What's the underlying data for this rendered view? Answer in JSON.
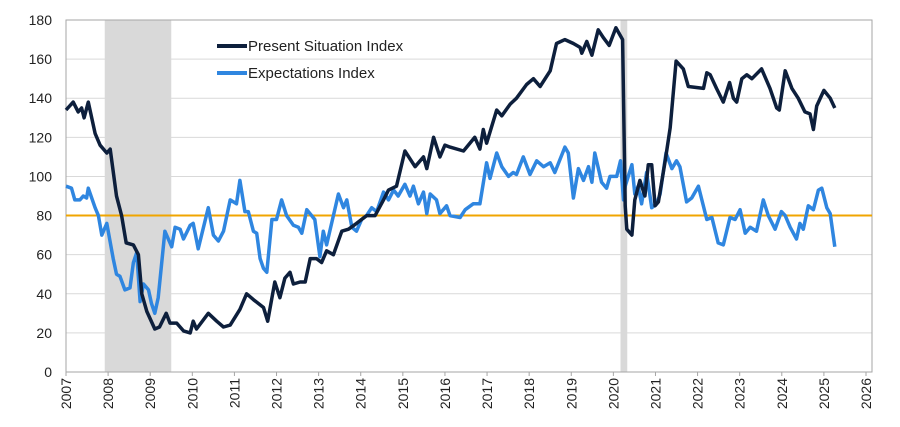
{
  "chart_data": {
    "type": "line",
    "title": "",
    "xlabel": "",
    "ylabel": "",
    "xlim": [
      2007,
      2026
    ],
    "ylim": [
      0,
      180
    ],
    "x_ticks": [
      "2007",
      "2008",
      "2009",
      "2010",
      "2011",
      "2012",
      "2013",
      "2014",
      "2015",
      "2016",
      "2017",
      "2018",
      "2019",
      "2020",
      "2021",
      "2022",
      "2023",
      "2024",
      "2025",
      "2026"
    ],
    "y_ticks": [
      "0",
      "20",
      "40",
      "60",
      "80",
      "100",
      "120",
      "140",
      "160",
      "180"
    ],
    "grid": "horizontal",
    "legend_position": "top-center",
    "reference_line": {
      "value": 80,
      "color": "#f0a500"
    },
    "recessions": [
      [
        2007.92,
        2009.5
      ],
      [
        2020.17,
        2020.33
      ]
    ],
    "recession_color": "#d9d9d9",
    "series": [
      {
        "name": "Present Situation Index",
        "color": "#0d1f3c",
        "points": [
          [
            2007.0,
            134
          ],
          [
            2007.17,
            138
          ],
          [
            2007.29,
            133
          ],
          [
            2007.37,
            135
          ],
          [
            2007.43,
            130
          ],
          [
            2007.53,
            138
          ],
          [
            2007.69,
            122
          ],
          [
            2007.81,
            116
          ],
          [
            2007.97,
            112
          ],
          [
            2008.05,
            114
          ],
          [
            2008.2,
            90
          ],
          [
            2008.32,
            80
          ],
          [
            2008.43,
            66
          ],
          [
            2008.6,
            65
          ],
          [
            2008.72,
            60
          ],
          [
            2008.8,
            40
          ],
          [
            2008.92,
            31
          ],
          [
            2009.11,
            22
          ],
          [
            2009.22,
            23
          ],
          [
            2009.38,
            30
          ],
          [
            2009.47,
            25
          ],
          [
            2009.63,
            25
          ],
          [
            2009.79,
            21
          ],
          [
            2009.95,
            20
          ],
          [
            2010.02,
            26
          ],
          [
            2010.1,
            22
          ],
          [
            2010.38,
            30
          ],
          [
            2010.58,
            26
          ],
          [
            2010.74,
            23
          ],
          [
            2010.9,
            24
          ],
          [
            2011.13,
            32
          ],
          [
            2011.29,
            40
          ],
          [
            2011.45,
            37
          ],
          [
            2011.69,
            33
          ],
          [
            2011.79,
            26
          ],
          [
            2011.96,
            46
          ],
          [
            2012.08,
            38
          ],
          [
            2012.2,
            48
          ],
          [
            2012.32,
            51
          ],
          [
            2012.4,
            45
          ],
          [
            2012.56,
            46
          ],
          [
            2012.68,
            46
          ],
          [
            2012.8,
            58
          ],
          [
            2012.95,
            58
          ],
          [
            2013.07,
            56
          ],
          [
            2013.19,
            62
          ],
          [
            2013.35,
            60
          ],
          [
            2013.55,
            72
          ],
          [
            2013.71,
            73
          ],
          [
            2013.9,
            76
          ],
          [
            2014.14,
            80
          ],
          [
            2014.34,
            80
          ],
          [
            2014.54,
            88
          ],
          [
            2014.66,
            93
          ],
          [
            2014.85,
            95
          ],
          [
            2015.05,
            113
          ],
          [
            2015.29,
            105
          ],
          [
            2015.49,
            110
          ],
          [
            2015.57,
            104
          ],
          [
            2015.73,
            120
          ],
          [
            2015.88,
            110
          ],
          [
            2016.0,
            116
          ],
          [
            2016.12,
            115
          ],
          [
            2016.44,
            113
          ],
          [
            2016.71,
            120
          ],
          [
            2016.83,
            114
          ],
          [
            2016.91,
            124
          ],
          [
            2016.99,
            117
          ],
          [
            2017.23,
            134
          ],
          [
            2017.35,
            131
          ],
          [
            2017.55,
            137
          ],
          [
            2017.7,
            140
          ],
          [
            2017.94,
            147
          ],
          [
            2018.1,
            150
          ],
          [
            2018.26,
            146
          ],
          [
            2018.5,
            154
          ],
          [
            2018.65,
            168
          ],
          [
            2018.85,
            170
          ],
          [
            2019.05,
            168
          ],
          [
            2019.21,
            166
          ],
          [
            2019.25,
            163
          ],
          [
            2019.37,
            169
          ],
          [
            2019.49,
            162
          ],
          [
            2019.64,
            175
          ],
          [
            2019.76,
            171
          ],
          [
            2019.9,
            167
          ],
          [
            2020.06,
            176
          ],
          [
            2020.22,
            170
          ],
          [
            2020.28,
            85
          ],
          [
            2020.32,
            73
          ],
          [
            2020.44,
            70
          ],
          [
            2020.51,
            88
          ],
          [
            2020.63,
            98
          ],
          [
            2020.75,
            90
          ],
          [
            2020.83,
            106
          ],
          [
            2020.91,
            106
          ],
          [
            2020.99,
            85
          ],
          [
            2021.07,
            87
          ],
          [
            2021.23,
            108
          ],
          [
            2021.35,
            125
          ],
          [
            2021.49,
            159
          ],
          [
            2021.66,
            155
          ],
          [
            2021.78,
            146
          ],
          [
            2022.14,
            145
          ],
          [
            2022.22,
            153
          ],
          [
            2022.3,
            152
          ],
          [
            2022.45,
            145
          ],
          [
            2022.61,
            138
          ],
          [
            2022.76,
            148
          ],
          [
            2022.85,
            140
          ],
          [
            2022.93,
            138
          ],
          [
            2023.05,
            150
          ],
          [
            2023.17,
            152
          ],
          [
            2023.29,
            150
          ],
          [
            2023.52,
            155
          ],
          [
            2023.72,
            145
          ],
          [
            2023.88,
            135
          ],
          [
            2023.94,
            134
          ],
          [
            2024.08,
            154
          ],
          [
            2024.24,
            145
          ],
          [
            2024.39,
            140
          ],
          [
            2024.55,
            133
          ],
          [
            2024.67,
            132
          ],
          [
            2024.75,
            124
          ],
          [
            2024.83,
            136
          ],
          [
            2025.0,
            144
          ],
          [
            2025.15,
            140
          ],
          [
            2025.26,
            135
          ]
        ]
      },
      {
        "name": "Expectations Index",
        "color": "#2f86e0",
        "points": [
          [
            2007.0,
            95
          ],
          [
            2007.13,
            94
          ],
          [
            2007.21,
            88
          ],
          [
            2007.33,
            88
          ],
          [
            2007.41,
            90
          ],
          [
            2007.49,
            89
          ],
          [
            2007.53,
            94
          ],
          [
            2007.69,
            84
          ],
          [
            2007.77,
            80
          ],
          [
            2007.85,
            70
          ],
          [
            2007.97,
            76
          ],
          [
            2008.12,
            58
          ],
          [
            2008.2,
            50
          ],
          [
            2008.28,
            49
          ],
          [
            2008.4,
            42
          ],
          [
            2008.52,
            43
          ],
          [
            2008.6,
            56
          ],
          [
            2008.68,
            61
          ],
          [
            2008.76,
            36
          ],
          [
            2008.84,
            45
          ],
          [
            2008.96,
            42
          ],
          [
            2009.03,
            35
          ],
          [
            2009.11,
            30
          ],
          [
            2009.19,
            38
          ],
          [
            2009.35,
            72
          ],
          [
            2009.51,
            64
          ],
          [
            2009.59,
            74
          ],
          [
            2009.71,
            73
          ],
          [
            2009.79,
            68
          ],
          [
            2009.95,
            75
          ],
          [
            2010.02,
            76
          ],
          [
            2010.14,
            63
          ],
          [
            2010.38,
            84
          ],
          [
            2010.5,
            70
          ],
          [
            2010.62,
            67
          ],
          [
            2010.74,
            72
          ],
          [
            2010.9,
            88
          ],
          [
            2011.05,
            86
          ],
          [
            2011.13,
            98
          ],
          [
            2011.25,
            82
          ],
          [
            2011.33,
            82
          ],
          [
            2011.45,
            72
          ],
          [
            2011.53,
            71
          ],
          [
            2011.61,
            58
          ],
          [
            2011.69,
            53
          ],
          [
            2011.77,
            51
          ],
          [
            2011.89,
            78
          ],
          [
            2012.0,
            78
          ],
          [
            2012.12,
            88
          ],
          [
            2012.24,
            80
          ],
          [
            2012.4,
            75
          ],
          [
            2012.52,
            74
          ],
          [
            2012.6,
            71
          ],
          [
            2012.72,
            83
          ],
          [
            2012.91,
            78
          ],
          [
            2013.03,
            59
          ],
          [
            2013.11,
            72
          ],
          [
            2013.19,
            65
          ],
          [
            2013.35,
            80
          ],
          [
            2013.47,
            91
          ],
          [
            2013.59,
            84
          ],
          [
            2013.67,
            88
          ],
          [
            2013.79,
            74
          ],
          [
            2013.9,
            72
          ],
          [
            2014.02,
            78
          ],
          [
            2014.14,
            80
          ],
          [
            2014.26,
            84
          ],
          [
            2014.38,
            82
          ],
          [
            2014.54,
            92
          ],
          [
            2014.66,
            88
          ],
          [
            2014.78,
            93
          ],
          [
            2014.89,
            90
          ],
          [
            2015.05,
            96
          ],
          [
            2015.17,
            90
          ],
          [
            2015.25,
            95
          ],
          [
            2015.37,
            86
          ],
          [
            2015.49,
            92
          ],
          [
            2015.57,
            81
          ],
          [
            2015.65,
            91
          ],
          [
            2015.8,
            88
          ],
          [
            2015.88,
            81
          ],
          [
            2016.04,
            85
          ],
          [
            2016.12,
            80
          ],
          [
            2016.36,
            79
          ],
          [
            2016.48,
            83
          ],
          [
            2016.67,
            86
          ],
          [
            2016.83,
            86
          ],
          [
            2016.99,
            107
          ],
          [
            2017.07,
            99
          ],
          [
            2017.23,
            112
          ],
          [
            2017.35,
            105
          ],
          [
            2017.51,
            100
          ],
          [
            2017.62,
            102
          ],
          [
            2017.7,
            101
          ],
          [
            2017.86,
            110
          ],
          [
            2018.02,
            101
          ],
          [
            2018.18,
            108
          ],
          [
            2018.34,
            105
          ],
          [
            2018.5,
            107
          ],
          [
            2018.61,
            102
          ],
          [
            2018.85,
            115
          ],
          [
            2018.93,
            112
          ],
          [
            2019.05,
            89
          ],
          [
            2019.17,
            104
          ],
          [
            2019.29,
            98
          ],
          [
            2019.41,
            105
          ],
          [
            2019.49,
            97
          ],
          [
            2019.56,
            112
          ],
          [
            2019.72,
            97
          ],
          [
            2019.84,
            94
          ],
          [
            2019.92,
            100
          ],
          [
            2020.08,
            100
          ],
          [
            2020.17,
            108
          ],
          [
            2020.24,
            88
          ],
          [
            2020.28,
            95
          ],
          [
            2020.44,
            106
          ],
          [
            2020.51,
            91
          ],
          [
            2020.59,
            95
          ],
          [
            2020.67,
            86
          ],
          [
            2020.79,
            102
          ],
          [
            2020.91,
            84
          ],
          [
            2021.03,
            86
          ],
          [
            2021.11,
            91
          ],
          [
            2021.25,
            112
          ],
          [
            2021.39,
            104
          ],
          [
            2021.5,
            108
          ],
          [
            2021.58,
            105
          ],
          [
            2021.74,
            87
          ],
          [
            2021.86,
            89
          ],
          [
            2022.02,
            95
          ],
          [
            2022.22,
            78
          ],
          [
            2022.34,
            79
          ],
          [
            2022.49,
            66
          ],
          [
            2022.61,
            65
          ],
          [
            2022.77,
            79
          ],
          [
            2022.89,
            78
          ],
          [
            2023.01,
            83
          ],
          [
            2023.13,
            71
          ],
          [
            2023.25,
            74
          ],
          [
            2023.4,
            72
          ],
          [
            2023.56,
            88
          ],
          [
            2023.68,
            80
          ],
          [
            2023.84,
            73
          ],
          [
            2023.99,
            82
          ],
          [
            2024.08,
            80
          ],
          [
            2024.2,
            74
          ],
          [
            2024.35,
            68
          ],
          [
            2024.43,
            76
          ],
          [
            2024.51,
            73
          ],
          [
            2024.63,
            85
          ],
          [
            2024.75,
            83
          ],
          [
            2024.87,
            93
          ],
          [
            2024.95,
            94
          ],
          [
            2025.07,
            84
          ],
          [
            2025.15,
            81
          ],
          [
            2025.26,
            64
          ]
        ]
      }
    ]
  }
}
